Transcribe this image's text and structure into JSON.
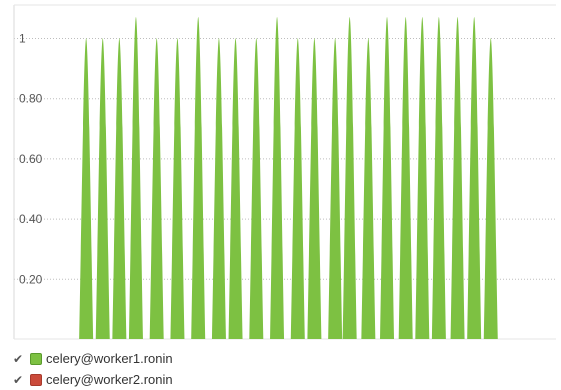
{
  "chart_data": {
    "type": "area",
    "title": "",
    "xlabel": "",
    "ylabel": "",
    "ylim": [
      0,
      1
    ],
    "y_ticks": [
      "0.20",
      "0.40",
      "0.60",
      "0.80",
      "1"
    ],
    "y_tick_values": [
      0.2,
      0.4,
      0.6,
      0.8,
      1
    ],
    "grid": true,
    "legend_position": "bottom-left",
    "series": [
      {
        "name": "celery@worker1.ronin",
        "color": "#7dc142",
        "visible": true,
        "peaks": [
          {
            "x": 0.01,
            "y": 1.0
          },
          {
            "x": 0.05,
            "y": 1.0
          },
          {
            "x": 0.09,
            "y": 1.0
          },
          {
            "x": 0.13,
            "y": 1.07
          },
          {
            "x": 0.18,
            "y": 1.0
          },
          {
            "x": 0.23,
            "y": 1.0
          },
          {
            "x": 0.28,
            "y": 1.07
          },
          {
            "x": 0.33,
            "y": 1.0
          },
          {
            "x": 0.37,
            "y": 1.0
          },
          {
            "x": 0.42,
            "y": 1.0
          },
          {
            "x": 0.47,
            "y": 1.07
          },
          {
            "x": 0.52,
            "y": 1.0
          },
          {
            "x": 0.56,
            "y": 1.0
          },
          {
            "x": 0.61,
            "y": 1.0
          },
          {
            "x": 0.645,
            "y": 1.07
          },
          {
            "x": 0.69,
            "y": 1.0
          },
          {
            "x": 0.735,
            "y": 1.07
          },
          {
            "x": 0.78,
            "y": 1.07
          },
          {
            "x": 0.82,
            "y": 1.07
          },
          {
            "x": 0.86,
            "y": 1.07
          },
          {
            "x": 0.905,
            "y": 1.07
          },
          {
            "x": 0.945,
            "y": 1.07
          },
          {
            "x": 0.985,
            "y": 1.0
          }
        ]
      },
      {
        "name": "celery@worker2.ronin",
        "color": "#cb4b3b",
        "visible": true,
        "peaks": []
      }
    ]
  },
  "legend": {
    "check_glyph": "✔",
    "items": [
      {
        "label": "celery@worker1.ronin",
        "color": "#7dc142"
      },
      {
        "label": "celery@worker2.ronin",
        "color": "#cb4b3b"
      }
    ]
  }
}
